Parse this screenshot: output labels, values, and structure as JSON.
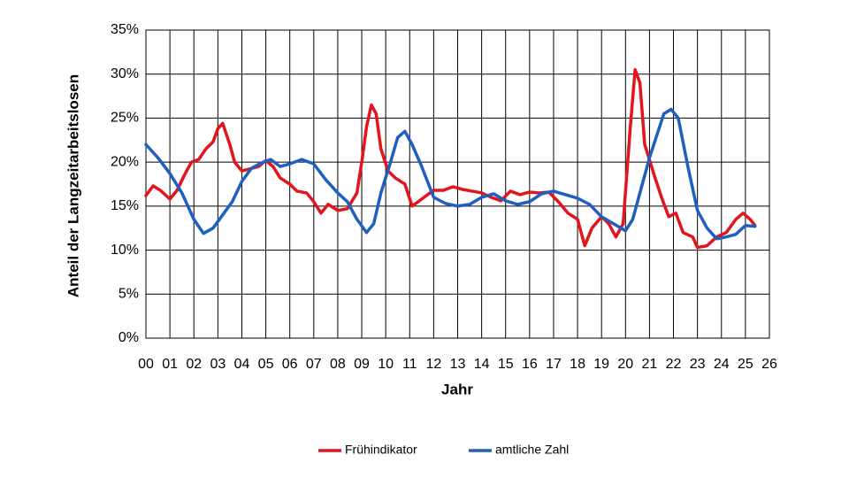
{
  "chart_data": {
    "type": "line",
    "x_label": "Jahr",
    "y_label": "Anteil der Langzeitarbeitslosen",
    "xlim": [
      0,
      26
    ],
    "xticks": [
      {
        "value": 0,
        "label": "00"
      },
      {
        "value": 1,
        "label": "01"
      },
      {
        "value": 2,
        "label": "02"
      },
      {
        "value": 3,
        "label": "03"
      },
      {
        "value": 4,
        "label": "04"
      },
      {
        "value": 5,
        "label": "05"
      },
      {
        "value": 6,
        "label": "06"
      },
      {
        "value": 7,
        "label": "07"
      },
      {
        "value": 8,
        "label": "08"
      },
      {
        "value": 9,
        "label": "09"
      },
      10,
      11,
      12,
      13,
      14,
      15,
      16,
      17,
      18,
      19,
      20,
      21,
      22,
      23,
      24,
      25,
      26
    ],
    "ylim": [
      0,
      35
    ],
    "yticks": [
      {
        "value": 0,
        "label": "0%"
      },
      {
        "value": 5,
        "label": "5%"
      },
      {
        "value": 10,
        "label": "10%"
      },
      {
        "value": 15,
        "label": "15%"
      },
      {
        "value": 20,
        "label": "20%"
      },
      {
        "value": 25,
        "label": "25%"
      },
      {
        "value": 30,
        "label": "30%"
      },
      {
        "value": 35,
        "label": "35%"
      }
    ],
    "grid": true,
    "legend": "bottom",
    "series": [
      {
        "name": "Frühindikator",
        "color": "#e3141b",
        "x": [
          0,
          0.3,
          0.6,
          1.0,
          1.3,
          1.6,
          1.9,
          2.2,
          2.5,
          2.8,
          3.0,
          3.2,
          3.5,
          3.7,
          4.0,
          4.3,
          4.7,
          5.0,
          5.3,
          5.6,
          6.0,
          6.3,
          6.7,
          7.0,
          7.3,
          7.6,
          8.0,
          8.4,
          8.8,
          9.0,
          9.2,
          9.4,
          9.6,
          9.8,
          10.1,
          10.4,
          10.8,
          11.1,
          11.5,
          12.0,
          12.4,
          12.8,
          13.2,
          13.6,
          14.0,
          14.4,
          14.8,
          15.2,
          15.6,
          16.0,
          16.4,
          16.8,
          17.2,
          17.6,
          18.0,
          18.3,
          18.6,
          19.0,
          19.3,
          19.6,
          19.9,
          20.2,
          20.4,
          20.6,
          20.8,
          21.2,
          21.5,
          21.8,
          22.1,
          22.4,
          22.8,
          23.0,
          23.4,
          23.8,
          24.2,
          24.6,
          24.9,
          25.2,
          25.4
        ],
        "values": [
          16.2,
          17.3,
          16.8,
          15.8,
          16.8,
          18.5,
          20.0,
          20.3,
          21.5,
          22.3,
          23.8,
          24.4,
          22.0,
          20.0,
          19.0,
          19.2,
          19.5,
          20.2,
          19.5,
          18.2,
          17.5,
          16.7,
          16.5,
          15.5,
          14.2,
          15.2,
          14.5,
          14.7,
          16.5,
          20.0,
          24.0,
          26.5,
          25.5,
          21.5,
          19.0,
          18.2,
          17.5,
          15.0,
          15.8,
          16.8,
          16.8,
          17.2,
          16.9,
          16.7,
          16.5,
          16.0,
          15.6,
          16.7,
          16.3,
          16.6,
          16.5,
          16.6,
          15.5,
          14.2,
          13.5,
          10.5,
          12.5,
          13.8,
          13.0,
          11.5,
          13.0,
          24.0,
          30.5,
          29.0,
          22.0,
          18.5,
          16.0,
          13.8,
          14.2,
          12.0,
          11.5,
          10.3,
          10.5,
          11.5,
          12.0,
          13.5,
          14.2,
          13.5,
          12.8
        ]
      },
      {
        "name": "amtliche Zahl",
        "color": "#1f5fbf",
        "x": [
          0,
          0.5,
          1.0,
          1.5,
          2.0,
          2.4,
          2.8,
          3.2,
          3.6,
          4.0,
          4.4,
          4.8,
          5.2,
          5.6,
          6.0,
          6.5,
          7.0,
          7.5,
          8.0,
          8.4,
          8.8,
          9.2,
          9.5,
          9.8,
          10.2,
          10.5,
          10.8,
          11.1,
          11.5,
          12.0,
          12.5,
          13.0,
          13.5,
          14.0,
          14.5,
          15.0,
          15.5,
          16.0,
          16.5,
          17.0,
          17.5,
          18.0,
          18.5,
          19.0,
          19.5,
          20.0,
          20.3,
          20.7,
          21.0,
          21.3,
          21.6,
          21.9,
          22.2,
          22.6,
          23.0,
          23.4,
          23.8,
          24.2,
          24.6,
          25.0,
          25.4
        ],
        "values": [
          22.0,
          20.5,
          18.7,
          16.5,
          13.5,
          11.9,
          12.5,
          14.0,
          15.5,
          17.8,
          19.3,
          19.9,
          20.3,
          19.5,
          19.8,
          20.3,
          19.8,
          18.0,
          16.5,
          15.5,
          13.5,
          12.0,
          13.0,
          16.5,
          20.0,
          22.8,
          23.5,
          22.0,
          19.5,
          16.0,
          15.3,
          15.0,
          15.2,
          16.0,
          16.4,
          15.6,
          15.2,
          15.5,
          16.4,
          16.7,
          16.3,
          15.9,
          15.2,
          13.8,
          13.0,
          12.2,
          13.5,
          17.5,
          20.5,
          23.0,
          25.5,
          26.0,
          25.0,
          19.5,
          14.5,
          12.5,
          11.3,
          11.5,
          11.8,
          12.8,
          12.7
        ]
      }
    ]
  }
}
